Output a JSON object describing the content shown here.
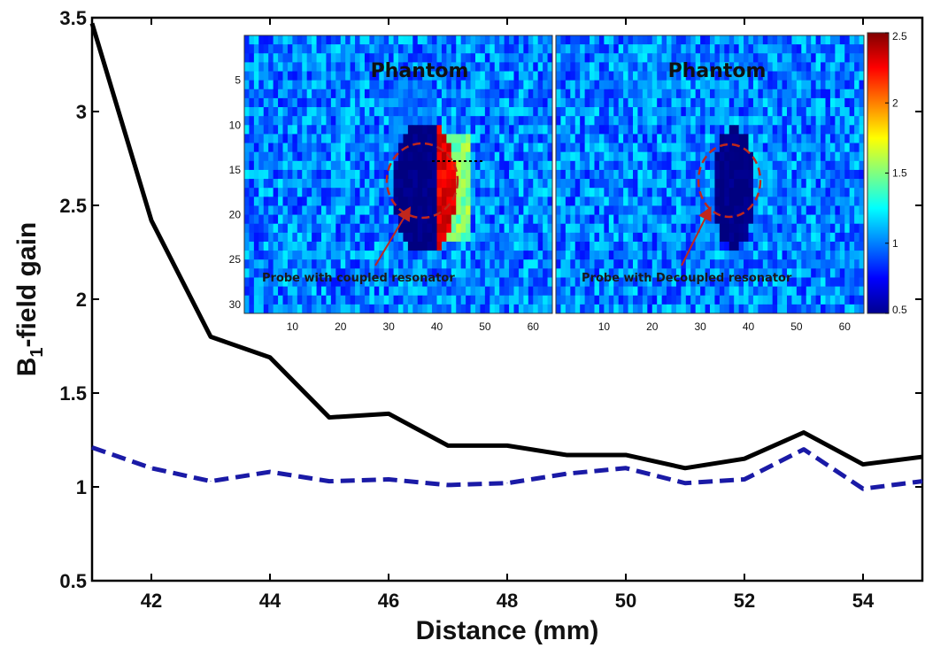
{
  "chart_data": [
    {
      "type": "line",
      "xlabel": "Distance (mm)",
      "ylabel_main": "B",
      "ylabel_sub": "1",
      "ylabel_rest": "-field gain",
      "xlim": [
        41,
        55
      ],
      "ylim": [
        0.5,
        3.5
      ],
      "xticks": [
        42,
        44,
        46,
        48,
        50,
        52,
        54
      ],
      "yticks": [
        0.5,
        1,
        1.5,
        2,
        2.5,
        3,
        3.5
      ],
      "grid": false,
      "legend": false,
      "series": [
        {
          "style": "solid",
          "color": "#000000",
          "x": [
            41,
            42,
            43,
            44,
            45,
            46,
            47,
            48,
            49,
            50,
            51,
            52,
            53,
            54,
            55
          ],
          "y": [
            3.47,
            2.42,
            1.8,
            1.69,
            1.37,
            1.39,
            1.22,
            1.22,
            1.17,
            1.17,
            1.1,
            1.15,
            1.29,
            1.12,
            1.16
          ]
        },
        {
          "style": "dashed",
          "color": "#1a1aa6",
          "x": [
            41,
            42,
            43,
            44,
            45,
            46,
            47,
            48,
            49,
            50,
            51,
            52,
            53,
            54,
            55
          ],
          "y": [
            1.21,
            1.1,
            1.03,
            1.08,
            1.03,
            1.04,
            1.01,
            1.02,
            1.07,
            1.1,
            1.02,
            1.04,
            1.2,
            0.99,
            1.03
          ]
        }
      ]
    },
    {
      "type": "heatmap",
      "title": "Phantom",
      "annotation": "Probe with coupled resonator",
      "xticks": [
        10,
        20,
        30,
        40,
        50,
        60
      ],
      "yticks": [
        5,
        10,
        15,
        20,
        25,
        30
      ],
      "xlim": [
        0,
        64
      ],
      "ylim": [
        0,
        31
      ],
      "hot_region": "coupled",
      "background_level": 1.0
    },
    {
      "type": "heatmap",
      "title": "Phantom",
      "annotation": "Probe with Decoupled resonator",
      "xticks": [
        10,
        20,
        30,
        40,
        50,
        60
      ],
      "xlim": [
        0,
        64
      ],
      "ylim": [
        0,
        31
      ],
      "hot_region": "decoupled",
      "background_level": 1.0
    }
  ],
  "colorbar": {
    "ticks": [
      "2.5",
      "2",
      "1.5",
      "1",
      "0.5"
    ],
    "min": 0.5,
    "max": 2.5
  },
  "colors": {
    "heatmap_background": "#3fb7ea",
    "annotation_arrow": "#c0271c",
    "dashed_circle": "#c0271c"
  }
}
